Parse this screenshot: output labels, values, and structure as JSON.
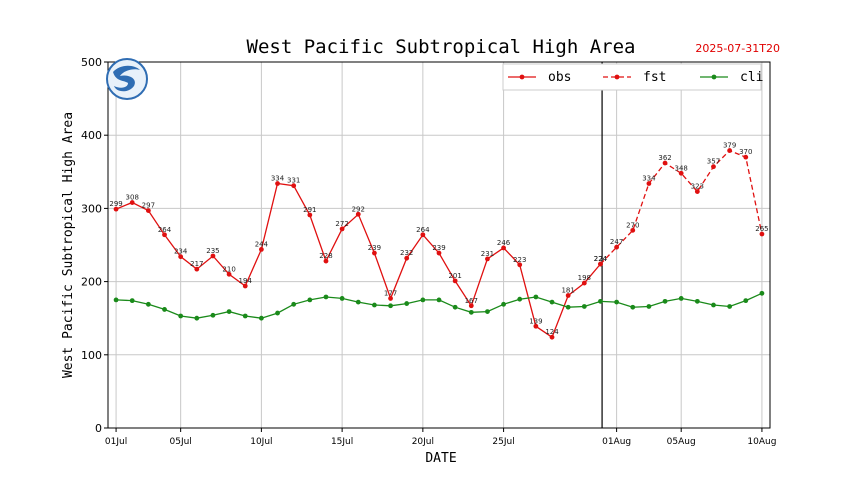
{
  "chart_data": {
    "type": "line",
    "title": "West Pacific Subtropical High Area",
    "timestamp": "2025-07-31T20",
    "xlabel": "DATE",
    "ylabel": "West Pacific Subtropical High Area",
    "ylim": [
      0,
      500
    ],
    "yticks": [
      0,
      100,
      200,
      300,
      400,
      500
    ],
    "xticks": [
      {
        "day": 1,
        "label": "01Jul"
      },
      {
        "day": 5,
        "label": "05Jul"
      },
      {
        "day": 10,
        "label": "10Jul"
      },
      {
        "day": 15,
        "label": "15Jul"
      },
      {
        "day": 20,
        "label": "20Jul"
      },
      {
        "day": 25,
        "label": "25Jul"
      },
      {
        "day": 32,
        "label": "01Aug"
      },
      {
        "day": 36,
        "label": "05Aug"
      },
      {
        "day": 41,
        "label": "10Aug"
      }
    ],
    "xlim": [
      0.5,
      41.5
    ],
    "split_day": 31.1,
    "grid": true,
    "legend_position": "top-right",
    "series": [
      {
        "name": "obs",
        "color": "#e01010",
        "style": "solid",
        "show_labels": true,
        "x": [
          1,
          2,
          3,
          4,
          5,
          6,
          7,
          8,
          9,
          10,
          11,
          12,
          13,
          14,
          15,
          16,
          17,
          18,
          19,
          20,
          21,
          22,
          23,
          24,
          25,
          26,
          27,
          28,
          29,
          30,
          31
        ],
        "values": [
          299,
          308,
          297,
          264,
          234,
          217,
          235,
          210,
          194,
          244,
          334,
          331,
          291,
          228,
          272,
          292,
          239,
          177,
          232,
          264,
          239,
          201,
          167,
          231,
          246,
          223,
          139,
          124,
          181,
          198,
          224
        ]
      },
      {
        "name": "fst",
        "color": "#e01010",
        "style": "dashed",
        "show_labels": true,
        "x": [
          31,
          32,
          33,
          34,
          35,
          36,
          37,
          38,
          39,
          40,
          41
        ],
        "values": [
          224,
          247,
          270,
          334,
          362,
          348,
          323,
          357,
          379,
          370,
          265
        ]
      },
      {
        "name": "cli",
        "color": "#1a8a1a",
        "style": "solid",
        "show_labels": false,
        "x": [
          1,
          2,
          3,
          4,
          5,
          6,
          7,
          8,
          9,
          10,
          11,
          12,
          13,
          14,
          15,
          16,
          17,
          18,
          19,
          20,
          21,
          22,
          23,
          24,
          25,
          26,
          27,
          28,
          29,
          30,
          31,
          32,
          33,
          34,
          35,
          36,
          37,
          38,
          39,
          40,
          41
        ],
        "values": [
          175,
          174,
          169,
          162,
          153,
          150,
          154,
          159,
          153,
          150,
          157,
          169,
          175,
          179,
          177,
          172,
          168,
          167,
          170,
          175,
          175,
          165,
          158,
          159,
          169,
          176,
          179,
          172,
          165,
          166,
          173,
          172,
          165,
          166,
          173,
          177,
          173,
          168,
          166,
          174,
          184
        ]
      }
    ]
  }
}
